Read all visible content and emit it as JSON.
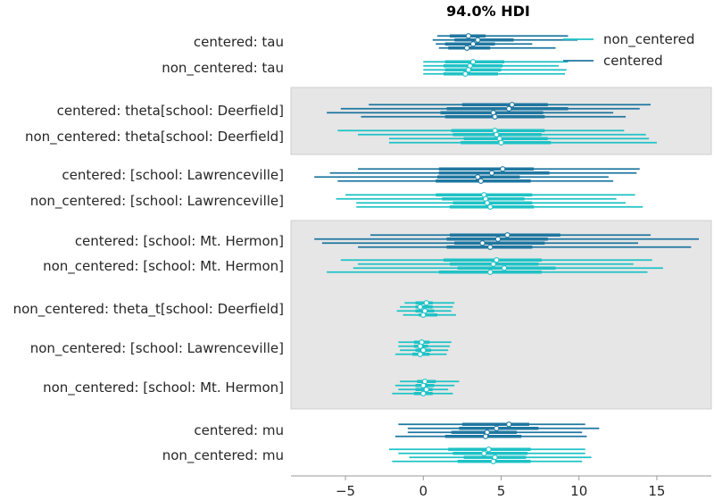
{
  "colors": {
    "centered": "#1f77a0",
    "non_centered": "#1fc2c6",
    "band": "#e6e6e6",
    "axis": "#999999",
    "text": "#262626"
  },
  "chart_data": {
    "type": "forest",
    "title": "94.0% HDI",
    "xlabel": "",
    "ylabel": "",
    "xlim": [
      -8.5,
      18.5
    ],
    "xticks": [
      -5,
      0,
      5,
      10,
      15
    ],
    "xtick_labels": [
      "−5",
      "0",
      "5",
      "10",
      "15"
    ],
    "legend": {
      "placement": "top-right",
      "entries": [
        {
          "name": "non_centered",
          "model": "non_centered"
        },
        {
          "name": "centered",
          "model": "centered"
        }
      ]
    },
    "groups": [
      {
        "shaded": false,
        "rows": [
          {
            "label": "centered: tau",
            "model": "centered",
            "chains": [
              {
                "lo": 0.9,
                "q1": 1.7,
                "med": 2.9,
                "q3": 4.0,
                "hi": 9.3
              },
              {
                "lo": 0.6,
                "q1": 2.0,
                "med": 3.5,
                "q3": 5.8,
                "hi": 9.9
              },
              {
                "lo": 0.8,
                "q1": 1.4,
                "med": 3.2,
                "q3": 4.6,
                "hi": 7.0
              },
              {
                "lo": 1.0,
                "q1": 1.6,
                "med": 2.8,
                "q3": 4.3,
                "hi": 8.5
              }
            ]
          },
          {
            "label": "non_centered: tau",
            "model": "non_centered",
            "chains": [
              {
                "lo": 0.0,
                "q1": 1.4,
                "med": 3.2,
                "q3": 5.2,
                "hi": 9.3
              },
              {
                "lo": 0.0,
                "q1": 1.3,
                "med": 3.0,
                "q3": 5.1,
                "hi": 8.7
              },
              {
                "lo": 0.0,
                "q1": 1.4,
                "med": 2.9,
                "q3": 5.0,
                "hi": 9.2
              },
              {
                "lo": 0.0,
                "q1": 1.3,
                "med": 2.7,
                "q3": 4.8,
                "hi": 9.1
              }
            ]
          }
        ]
      },
      {
        "shaded": true,
        "rows": [
          {
            "label": "centered: theta[school: Deerfield]",
            "model": "centered",
            "chains": [
              {
                "lo": -3.5,
                "q1": 2.5,
                "med": 5.7,
                "q3": 8.0,
                "hi": 14.6
              },
              {
                "lo": -5.3,
                "q1": 1.5,
                "med": 5.5,
                "q3": 9.3,
                "hi": 13.9
              },
              {
                "lo": -6.2,
                "q1": 1.1,
                "med": 4.5,
                "q3": 7.7,
                "hi": 12.2
              },
              {
                "lo": -4.0,
                "q1": 1.4,
                "med": 4.6,
                "q3": 7.8,
                "hi": 13.0
              }
            ]
          },
          {
            "label": "non_centered: theta[school: Deerfield]",
            "model": "non_centered",
            "chains": [
              {
                "lo": -5.5,
                "q1": 1.8,
                "med": 4.6,
                "q3": 7.8,
                "hi": 12.9
              },
              {
                "lo": -4.2,
                "q1": 1.9,
                "med": 4.7,
                "q3": 7.6,
                "hi": 14.3
              },
              {
                "lo": -2.2,
                "q1": 2.6,
                "med": 4.9,
                "q3": 8.0,
                "hi": 14.5
              },
              {
                "lo": -2.2,
                "q1": 2.4,
                "med": 5.0,
                "q3": 8.2,
                "hi": 15.0
              }
            ]
          }
        ]
      },
      {
        "shaded": false,
        "rows": [
          {
            "label": "centered: [school: Lawrenceville]",
            "model": "centered",
            "chains": [
              {
                "lo": -4.2,
                "q1": 1.0,
                "med": 5.1,
                "q3": 7.1,
                "hi": 13.9
              },
              {
                "lo": -6.0,
                "q1": 1.0,
                "med": 4.4,
                "q3": 8.1,
                "hi": 13.7
              },
              {
                "lo": -7.0,
                "q1": 0.9,
                "med": 3.5,
                "q3": 6.2,
                "hi": 11.9
              },
              {
                "lo": -5.5,
                "q1": 0.8,
                "med": 3.7,
                "q3": 6.9,
                "hi": 12.2
              }
            ]
          },
          {
            "label": "non_centered: [school: Lawrenceville]",
            "model": "non_centered",
            "chains": [
              {
                "lo": -5.0,
                "q1": 0.8,
                "med": 3.9,
                "q3": 7.0,
                "hi": 13.6
              },
              {
                "lo": -5.6,
                "q1": 1.2,
                "med": 4.0,
                "q3": 6.5,
                "hi": 12.4
              },
              {
                "lo": -4.3,
                "q1": 1.9,
                "med": 4.1,
                "q3": 7.0,
                "hi": 13.0
              },
              {
                "lo": -4.3,
                "q1": 1.7,
                "med": 4.3,
                "q3": 7.1,
                "hi": 14.1
              }
            ]
          }
        ]
      },
      {
        "shaded": true,
        "rows": [
          {
            "label": "centered: [school: Mt. Hermon]",
            "model": "centered",
            "chains": [
              {
                "lo": -3.4,
                "q1": 1.7,
                "med": 5.4,
                "q3": 8.8,
                "hi": 14.6
              },
              {
                "lo": -7.0,
                "q1": 1.5,
                "med": 4.8,
                "q3": 8.0,
                "hi": 17.7
              },
              {
                "lo": -6.5,
                "q1": 2.0,
                "med": 3.8,
                "q3": 7.8,
                "hi": 13.8
              },
              {
                "lo": -4.2,
                "q1": 1.5,
                "med": 4.3,
                "q3": 7.0,
                "hi": 17.2
              }
            ]
          },
          {
            "label": "non_centered: [school: Mt. Hermon]",
            "model": "non_centered",
            "chains": [
              {
                "lo": -5.3,
                "q1": 1.3,
                "med": 4.7,
                "q3": 7.6,
                "hi": 14.7
              },
              {
                "lo": -4.2,
                "q1": 1.7,
                "med": 4.5,
                "q3": 7.4,
                "hi": 13.5
              },
              {
                "lo": -4.5,
                "q1": 2.2,
                "med": 5.2,
                "q3": 8.5,
                "hi": 15.4
              },
              {
                "lo": -6.2,
                "q1": 1.0,
                "med": 4.3,
                "q3": 7.6,
                "hi": 14.4
              }
            ]
          },
          {
            "label": "non_centered: theta_t[school: Deerfield]",
            "model": "non_centered",
            "chains": [
              {
                "lo": -1.2,
                "q1": -0.5,
                "med": 0.2,
                "q3": 0.6,
                "hi": 2.0
              },
              {
                "lo": -1.5,
                "q1": -0.5,
                "med": -0.2,
                "q3": 0.6,
                "hi": 1.9
              },
              {
                "lo": -1.7,
                "q1": -0.5,
                "med": 0.1,
                "q3": 0.7,
                "hi": 1.8
              },
              {
                "lo": -1.3,
                "q1": -0.3,
                "med": 0.0,
                "q3": 0.9,
                "hi": 2.1
              }
            ]
          },
          {
            "label": "non_centered: [school: Lawrenceville]",
            "model": "non_centered",
            "chains": [
              {
                "lo": -1.6,
                "q1": -0.6,
                "med": -0.1,
                "q3": 0.4,
                "hi": 1.8
              },
              {
                "lo": -1.6,
                "q1": -0.6,
                "med": -0.2,
                "q3": 0.3,
                "hi": 1.7
              },
              {
                "lo": -1.5,
                "q1": -0.5,
                "med": 0.0,
                "q3": 0.5,
                "hi": 1.6
              },
              {
                "lo": -1.8,
                "q1": -0.7,
                "med": -0.2,
                "q3": 0.4,
                "hi": 1.5
              }
            ]
          },
          {
            "label": "non_centered: [school: Mt. Hermon]",
            "model": "non_centered",
            "chains": [
              {
                "lo": -1.5,
                "q1": -0.4,
                "med": 0.1,
                "q3": 0.8,
                "hi": 2.3
              },
              {
                "lo": -1.8,
                "q1": -0.5,
                "med": 0.0,
                "q3": 0.7,
                "hi": 2.0
              },
              {
                "lo": -1.6,
                "q1": -0.5,
                "med": 0.2,
                "q3": 0.6,
                "hi": 1.6
              },
              {
                "lo": -2.0,
                "q1": -0.6,
                "med": 0.0,
                "q3": 0.6,
                "hi": 1.9
              }
            ]
          }
        ]
      },
      {
        "shaded": false,
        "rows": [
          {
            "label": "centered: mu",
            "model": "centered",
            "chains": [
              {
                "lo": -1.6,
                "q1": 2.5,
                "med": 5.5,
                "q3": 6.8,
                "hi": 10.4
              },
              {
                "lo": -1.0,
                "q1": 2.3,
                "med": 4.7,
                "q3": 7.4,
                "hi": 11.3
              },
              {
                "lo": -1.0,
                "q1": 1.8,
                "med": 4.1,
                "q3": 6.0,
                "hi": 10.2
              },
              {
                "lo": -1.8,
                "q1": 1.4,
                "med": 4.0,
                "q3": 6.3,
                "hi": 10.5
              }
            ]
          },
          {
            "label": "non_centered: mu",
            "model": "non_centered",
            "chains": [
              {
                "lo": -2.2,
                "q1": 1.6,
                "med": 4.2,
                "q3": 6.9,
                "hi": 10.4
              },
              {
                "lo": -1.6,
                "q1": 1.9,
                "med": 3.9,
                "q3": 6.7,
                "hi": 10.4
              },
              {
                "lo": -0.9,
                "q1": 2.6,
                "med": 4.6,
                "q3": 6.6,
                "hi": 10.8
              },
              {
                "lo": -2.0,
                "q1": 2.2,
                "med": 4.5,
                "q3": 6.9,
                "hi": 10.2
              }
            ]
          }
        ]
      }
    ]
  }
}
